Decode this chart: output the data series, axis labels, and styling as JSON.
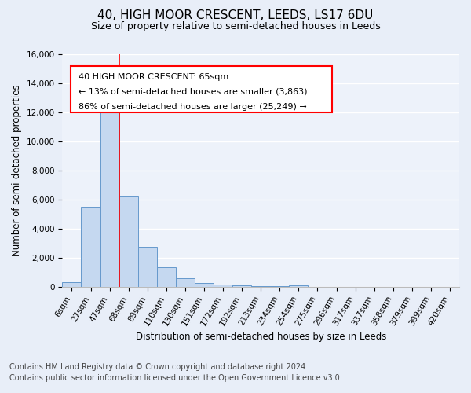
{
  "title": "40, HIGH MOOR CRESCENT, LEEDS, LS17 6DU",
  "subtitle": "Size of property relative to semi-detached houses in Leeds",
  "xlabel": "Distribution of semi-detached houses by size in Leeds",
  "ylabel": "Number of semi-detached properties",
  "footnote1": "Contains HM Land Registry data © Crown copyright and database right 2024.",
  "footnote2": "Contains public sector information licensed under the Open Government Licence v3.0.",
  "bar_labels": [
    "6sqm",
    "27sqm",
    "47sqm",
    "68sqm",
    "89sqm",
    "110sqm",
    "130sqm",
    "151sqm",
    "172sqm",
    "192sqm",
    "213sqm",
    "234sqm",
    "254sqm",
    "275sqm",
    "296sqm",
    "317sqm",
    "337sqm",
    "358sqm",
    "379sqm",
    "399sqm",
    "420sqm"
  ],
  "bar_values": [
    320,
    5500,
    12400,
    6200,
    2750,
    1350,
    600,
    275,
    200,
    130,
    90,
    75,
    110,
    0,
    0,
    0,
    0,
    0,
    0,
    0,
    0
  ],
  "bar_color": "#c5d8f0",
  "bar_edge_color": "#6699cc",
  "red_line_bar_index": 3,
  "bar_width": 1.0,
  "annotation_text_line1": "40 HIGH MOOR CRESCENT: 65sqm",
  "annotation_text_line2": "← 13% of semi-detached houses are smaller (3,863)",
  "annotation_text_line3": "86% of semi-detached houses are larger (25,249) →",
  "ylim": [
    0,
    16000
  ],
  "yticks": [
    0,
    2000,
    4000,
    6000,
    8000,
    10000,
    12000,
    14000,
    16000
  ],
  "bg_color": "#e8eef8",
  "plot_bg_color": "#edf2fa",
  "grid_color": "#ffffff",
  "title_fontsize": 11,
  "subtitle_fontsize": 9,
  "axis_label_fontsize": 8.5,
  "tick_fontsize": 7.5,
  "annotation_fontsize": 8,
  "footnote_fontsize": 7
}
